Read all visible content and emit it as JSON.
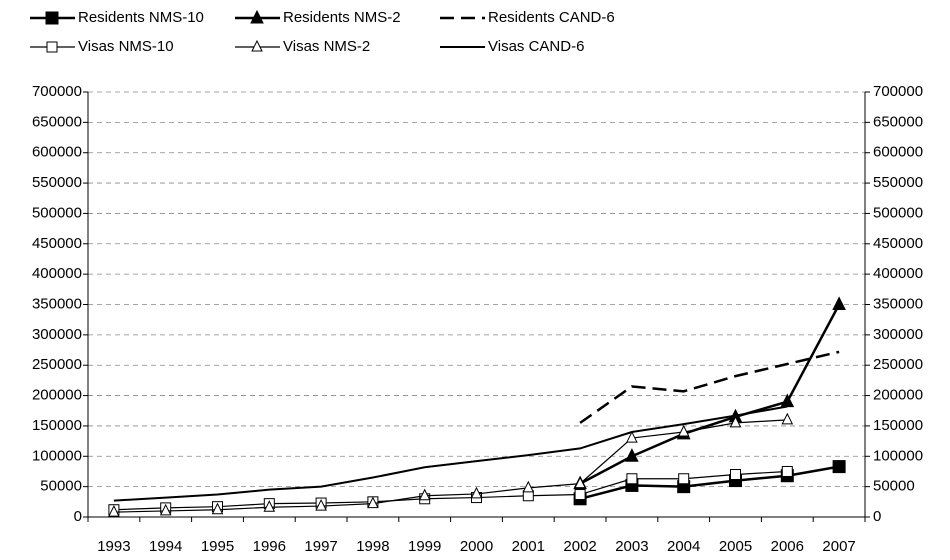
{
  "chart_data": {
    "type": "line",
    "categories": [
      "1993",
      "1994",
      "1995",
      "1996",
      "1997",
      "1998",
      "1999",
      "2000",
      "2001",
      "2002",
      "2003",
      "2004",
      "2005",
      "2006",
      "2007"
    ],
    "series": [
      {
        "name": "Residents NMS-10",
        "color": "#000000",
        "marker": "square-filled",
        "dash": false,
        "width": 2.5,
        "values": [
          null,
          null,
          null,
          null,
          null,
          null,
          null,
          null,
          null,
          30000,
          52000,
          50000,
          60000,
          68000,
          83000
        ]
      },
      {
        "name": "Residents NMS-2",
        "color": "#000000",
        "marker": "triangle-filled",
        "dash": false,
        "width": 2.5,
        "values": [
          null,
          null,
          null,
          null,
          null,
          null,
          null,
          null,
          null,
          55000,
          100000,
          137000,
          165000,
          190000,
          350000
        ]
      },
      {
        "name": "Residents CAND-6",
        "color": "#000000",
        "marker": "none",
        "dash": true,
        "width": 2.5,
        "values": [
          null,
          null,
          null,
          null,
          null,
          null,
          null,
          null,
          null,
          155000,
          215000,
          207000,
          232000,
          252000,
          272000
        ]
      },
      {
        "name": "Visas NMS-10",
        "color": "#000000",
        "marker": "square-open",
        "dash": false,
        "width": 1.2,
        "values": [
          12000,
          15000,
          17000,
          22000,
          23000,
          25000,
          30000,
          32000,
          35000,
          37000,
          63000,
          63000,
          70000,
          75000,
          null
        ]
      },
      {
        "name": "Visas NMS-2",
        "color": "#000000",
        "marker": "triangle-open",
        "dash": false,
        "width": 1.2,
        "values": [
          8000,
          10000,
          12000,
          16000,
          18000,
          22000,
          35000,
          38000,
          48000,
          55000,
          130000,
          140000,
          155000,
          160000,
          null
        ]
      },
      {
        "name": "Visas CAND-6",
        "color": "#000000",
        "marker": "none",
        "dash": false,
        "width": 2,
        "values": [
          27000,
          32000,
          37000,
          45000,
          50000,
          65000,
          82000,
          92000,
          102000,
          113000,
          140000,
          153000,
          167000,
          182000,
          null
        ]
      }
    ],
    "ylim": [
      0,
      700000
    ],
    "yticks": [
      0,
      50000,
      100000,
      150000,
      200000,
      250000,
      300000,
      350000,
      400000,
      450000,
      500000,
      550000,
      600000,
      650000,
      700000
    ],
    "y2lim": [
      0,
      700000
    ],
    "y2ticks": [
      0,
      50000,
      100000,
      150000,
      200000,
      250000,
      300000,
      350000,
      400000,
      450000,
      500000,
      550000,
      600000,
      650000,
      700000
    ],
    "grid": true
  }
}
